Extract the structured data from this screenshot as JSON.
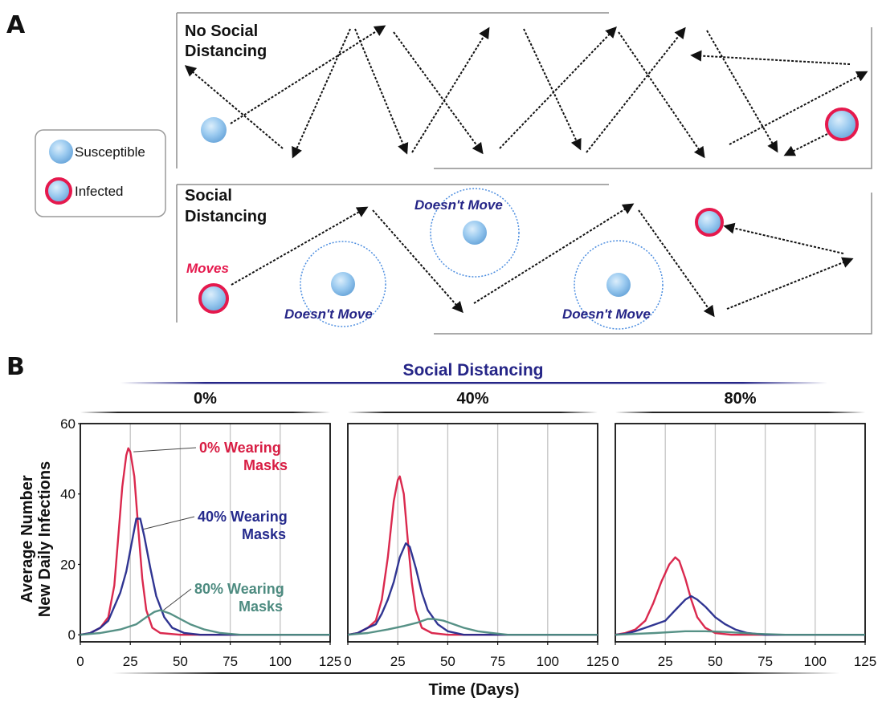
{
  "panel_a": {
    "letter": "A",
    "legend": {
      "susceptible": "Susceptible",
      "infected": "Infected"
    },
    "top_box": {
      "title_line1": "No Social",
      "title_line2": "Distancing"
    },
    "bottom_box": {
      "title_line1": "Social",
      "title_line2": "Distancing",
      "moves_label": "Moves",
      "static_label": "Doesn't Move"
    }
  },
  "panel_b": {
    "letter": "B"
  },
  "colors": {
    "red": "#d81e44",
    "blue": "#252a8c",
    "teal": "#4d8b80",
    "grid": "#c4c4c4",
    "ball": "#8dc3ee",
    "ring": "#e5194d",
    "bracket": "#232323",
    "sd_bracket": "#252587"
  },
  "chart_data": {
    "type": "line",
    "group_title": "Social Distancing",
    "xlabel": "Time (Days)",
    "ylabel": [
      "Average Number",
      "New Daily Infections"
    ],
    "xlim": [
      0,
      125
    ],
    "ylim": [
      -2,
      60
    ],
    "xticks": [
      0,
      25,
      50,
      75,
      100,
      125
    ],
    "yticks": [
      0,
      20,
      40,
      60
    ],
    "grid": "vertical",
    "facets": [
      {
        "title": "0%",
        "series": [
          {
            "name": "0% Wearing Masks",
            "label": [
              "0% Wearing",
              "Masks"
            ],
            "color": "red",
            "points": [
              [
                0,
                0
              ],
              [
                5,
                0.5
              ],
              [
                10,
                2
              ],
              [
                14,
                5
              ],
              [
                17,
                14
              ],
              [
                19,
                28
              ],
              [
                21,
                42
              ],
              [
                23,
                51
              ],
              [
                24,
                53
              ],
              [
                25,
                52
              ],
              [
                27,
                45
              ],
              [
                29,
                30
              ],
              [
                31,
                16
              ],
              [
                33,
                7
              ],
              [
                36,
                2
              ],
              [
                40,
                0.5
              ],
              [
                50,
                0
              ],
              [
                125,
                0
              ]
            ]
          },
          {
            "name": "40% Wearing Masks",
            "label": [
              "40% Wearing",
              "Masks"
            ],
            "color": "blue",
            "points": [
              [
                0,
                0
              ],
              [
                5,
                0.5
              ],
              [
                10,
                2
              ],
              [
                14,
                4
              ],
              [
                17,
                8
              ],
              [
                20,
                12
              ],
              [
                23,
                18
              ],
              [
                26,
                27
              ],
              [
                28,
                33
              ],
              [
                30,
                33
              ],
              [
                32,
                28
              ],
              [
                35,
                19
              ],
              [
                38,
                11
              ],
              [
                42,
                5
              ],
              [
                46,
                2
              ],
              [
                52,
                0.5
              ],
              [
                60,
                0
              ],
              [
                125,
                0
              ]
            ]
          },
          {
            "name": "80% Wearing Masks",
            "label": [
              "80% Wearing",
              "Masks"
            ],
            "color": "teal",
            "points": [
              [
                0,
                0
              ],
              [
                10,
                0.5
              ],
              [
                20,
                1.5
              ],
              [
                28,
                3
              ],
              [
                33,
                5
              ],
              [
                37,
                6.5
              ],
              [
                40,
                7
              ],
              [
                45,
                6
              ],
              [
                50,
                4.5
              ],
              [
                55,
                3
              ],
              [
                62,
                1.5
              ],
              [
                70,
                0.5
              ],
              [
                80,
                0
              ],
              [
                125,
                0
              ]
            ]
          }
        ]
      },
      {
        "title": "40%",
        "series": [
          {
            "name": "0% Wearing Masks",
            "color": "red",
            "points": [
              [
                0,
                0
              ],
              [
                5,
                0.5
              ],
              [
                10,
                2
              ],
              [
                14,
                4
              ],
              [
                17,
                10
              ],
              [
                20,
                22
              ],
              [
                23,
                38
              ],
              [
                25,
                44
              ],
              [
                26,
                45
              ],
              [
                28,
                40
              ],
              [
                30,
                27
              ],
              [
                32,
                15
              ],
              [
                34,
                7
              ],
              [
                37,
                2
              ],
              [
                42,
                0.5
              ],
              [
                50,
                0
              ],
              [
                125,
                0
              ]
            ]
          },
          {
            "name": "40% Wearing Masks",
            "color": "blue",
            "points": [
              [
                0,
                0
              ],
              [
                5,
                0.5
              ],
              [
                10,
                2
              ],
              [
                14,
                3
              ],
              [
                17,
                6
              ],
              [
                20,
                10
              ],
              [
                23,
                15
              ],
              [
                26,
                22
              ],
              [
                29,
                26
              ],
              [
                31,
                25
              ],
              [
                34,
                19
              ],
              [
                37,
                12
              ],
              [
                40,
                7
              ],
              [
                45,
                3
              ],
              [
                50,
                1
              ],
              [
                58,
                0
              ],
              [
                125,
                0
              ]
            ]
          },
          {
            "name": "80% Wearing Masks",
            "color": "teal",
            "points": [
              [
                0,
                0
              ],
              [
                10,
                0.5
              ],
              [
                20,
                1.5
              ],
              [
                28,
                2.5
              ],
              [
                35,
                3.5
              ],
              [
                40,
                4.5
              ],
              [
                43,
                4.5
              ],
              [
                48,
                4
              ],
              [
                53,
                3
              ],
              [
                58,
                2
              ],
              [
                65,
                1
              ],
              [
                72,
                0.5
              ],
              [
                80,
                0
              ],
              [
                125,
                0
              ]
            ]
          }
        ]
      },
      {
        "title": "80%",
        "series": [
          {
            "name": "0% Wearing Masks",
            "color": "red",
            "points": [
              [
                0,
                0
              ],
              [
                5,
                0.5
              ],
              [
                10,
                1.5
              ],
              [
                15,
                4
              ],
              [
                19,
                9
              ],
              [
                23,
                15
              ],
              [
                27,
                20
              ],
              [
                30,
                22
              ],
              [
                32,
                21
              ],
              [
                35,
                16
              ],
              [
                38,
                10
              ],
              [
                41,
                5
              ],
              [
                45,
                2
              ],
              [
                50,
                0.5
              ],
              [
                58,
                0
              ],
              [
                125,
                0
              ]
            ]
          },
          {
            "name": "40% Wearing Masks",
            "color": "blue",
            "points": [
              [
                0,
                0
              ],
              [
                5,
                0.3
              ],
              [
                10,
                1
              ],
              [
                15,
                2
              ],
              [
                20,
                3
              ],
              [
                25,
                4
              ],
              [
                30,
                7
              ],
              [
                35,
                10
              ],
              [
                38,
                11
              ],
              [
                41,
                10
              ],
              [
                45,
                8
              ],
              [
                50,
                5
              ],
              [
                55,
                3
              ],
              [
                60,
                1.5
              ],
              [
                66,
                0.5
              ],
              [
                75,
                0
              ],
              [
                125,
                0
              ]
            ]
          },
          {
            "name": "80% Wearing Masks",
            "color": "teal",
            "points": [
              [
                0,
                0
              ],
              [
                20,
                0.5
              ],
              [
                35,
                1
              ],
              [
                45,
                1
              ],
              [
                55,
                0.8
              ],
              [
                70,
                0.3
              ],
              [
                85,
                0
              ],
              [
                125,
                0
              ]
            ]
          }
        ]
      }
    ]
  }
}
